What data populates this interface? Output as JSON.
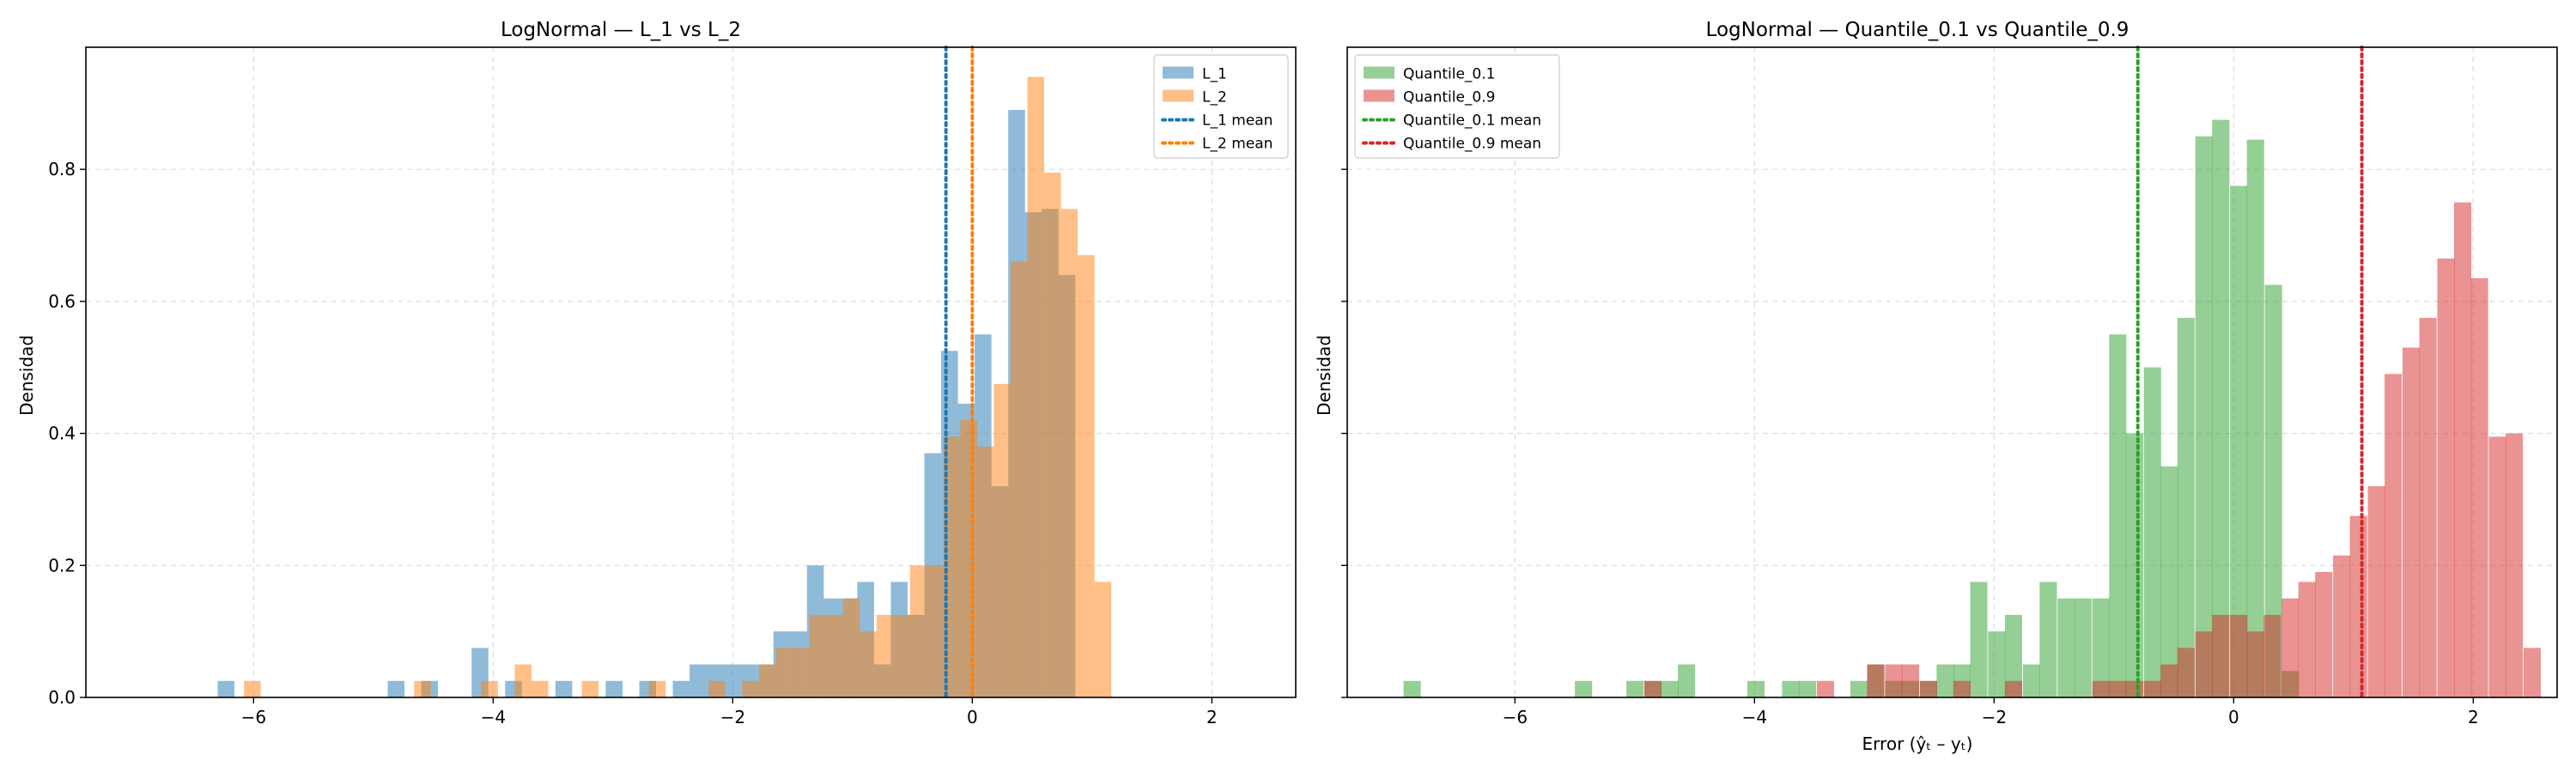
{
  "figure": {
    "ylabel": "Densidad"
  },
  "chart_data": [
    {
      "type": "histogram",
      "title": "LogNormal — L_1 vs L_2",
      "xlabel": "",
      "ylabel": "Densidad",
      "xlim": [
        -7.4,
        2.7
      ],
      "ylim": [
        0,
        0.985
      ],
      "xticks": [
        -6,
        -4,
        -2,
        0,
        2
      ],
      "xtick_labels": [
        "−6",
        "−4",
        "−2",
        "0",
        "2"
      ],
      "yticks": [
        0,
        0.2,
        0.4,
        0.6,
        0.8
      ],
      "ytick_labels": [
        "0.0",
        "0.2",
        "0.4",
        "0.6",
        "0.8"
      ],
      "grid": true,
      "legend_position": "top-right",
      "series": [
        {
          "name": "L_1",
          "color": "#1f77b4",
          "opacity": 0.5,
          "bin_width": 0.14,
          "bins": [
            [
              -6.3,
              0.025
            ],
            [
              -4.88,
              0.025
            ],
            [
              -4.6,
              0.025
            ],
            [
              -4.18,
              0.075
            ],
            [
              -3.9,
              0.025
            ],
            [
              -3.48,
              0.025
            ],
            [
              -3.06,
              0.025
            ],
            [
              -2.78,
              0.025
            ],
            [
              -2.5,
              0.025
            ],
            [
              -2.36,
              0.05
            ],
            [
              -2.22,
              0.05
            ],
            [
              -2.08,
              0.05
            ],
            [
              -1.94,
              0.05
            ],
            [
              -1.8,
              0.05
            ],
            [
              -1.66,
              0.1
            ],
            [
              -1.52,
              0.1
            ],
            [
              -1.38,
              0.2
            ],
            [
              -1.24,
              0.15
            ],
            [
              -1.1,
              0.15
            ],
            [
              -0.96,
              0.175
            ],
            [
              -0.82,
              0.05
            ],
            [
              -0.68,
              0.175
            ],
            [
              -0.54,
              0.125
            ],
            [
              -0.4,
              0.37
            ],
            [
              -0.26,
              0.525
            ],
            [
              -0.12,
              0.445
            ],
            [
              0.02,
              0.55
            ],
            [
              0.16,
              0.32
            ],
            [
              0.3,
              0.89
            ],
            [
              0.44,
              0.735
            ],
            [
              0.58,
              0.74
            ],
            [
              0.72,
              0.64
            ]
          ]
        },
        {
          "name": "L_2",
          "color": "#ff7f0e",
          "opacity": 0.5,
          "bin_width": 0.14,
          "bins": [
            [
              -6.08,
              0.025
            ],
            [
              -4.66,
              0.025
            ],
            [
              -4.1,
              0.025
            ],
            [
              -3.82,
              0.05
            ],
            [
              -3.68,
              0.025
            ],
            [
              -3.26,
              0.025
            ],
            [
              -2.7,
              0.025
            ],
            [
              -2.2,
              0.025
            ],
            [
              -1.92,
              0.025
            ],
            [
              -1.78,
              0.05
            ],
            [
              -1.64,
              0.075
            ],
            [
              -1.5,
              0.075
            ],
            [
              -1.36,
              0.125
            ],
            [
              -1.22,
              0.125
            ],
            [
              -1.08,
              0.15
            ],
            [
              -0.94,
              0.1
            ],
            [
              -0.8,
              0.125
            ],
            [
              -0.66,
              0.125
            ],
            [
              -0.52,
              0.2
            ],
            [
              -0.38,
              0.2
            ],
            [
              -0.24,
              0.395
            ],
            [
              -0.1,
              0.42
            ],
            [
              0.04,
              0.38
            ],
            [
              0.18,
              0.475
            ],
            [
              0.32,
              0.66
            ],
            [
              0.46,
              0.94
            ],
            [
              0.6,
              0.795
            ],
            [
              0.74,
              0.74
            ],
            [
              0.88,
              0.67
            ],
            [
              1.02,
              0.175
            ]
          ]
        }
      ],
      "mean_lines": [
        {
          "name": "L_1 mean",
          "x": -0.22,
          "color": "#1f77b4"
        },
        {
          "name": "L_2 mean",
          "x": 0.0,
          "color": "#ff7f0e"
        }
      ]
    },
    {
      "type": "histogram",
      "title": "LogNormal — Quantile_0.1 vs Quantile_0.9",
      "xlabel": "Error (ŷₜ – yₜ)",
      "ylabel": "Densidad",
      "xlim": [
        -7.4,
        2.7
      ],
      "ylim": [
        0,
        0.985
      ],
      "xticks": [
        -6,
        -4,
        -2,
        0,
        2
      ],
      "xtick_labels": [
        "−6",
        "−4",
        "−2",
        "0",
        "2"
      ],
      "yticks": [
        0,
        0.2,
        0.4,
        0.6,
        0.8
      ],
      "ytick_labels": [
        "",
        "",
        "",
        "",
        ""
      ],
      "grid": true,
      "legend_position": "top-left",
      "series": [
        {
          "name": "Quantile_0.1",
          "color": "#2ca02c",
          "opacity": 0.5,
          "bin_width": 0.144,
          "bins": [
            [
              -6.93,
              0.025
            ],
            [
              -5.5,
              0.025
            ],
            [
              -5.07,
              0.025
            ],
            [
              -4.92,
              0.025
            ],
            [
              -4.78,
              0.025
            ],
            [
              -4.64,
              0.05
            ],
            [
              -4.06,
              0.025
            ],
            [
              -3.77,
              0.025
            ],
            [
              -3.63,
              0.025
            ],
            [
              -3.2,
              0.025
            ],
            [
              -3.06,
              0.05
            ],
            [
              -2.91,
              0.025
            ],
            [
              -2.77,
              0.025
            ],
            [
              -2.62,
              0.025
            ],
            [
              -2.48,
              0.05
            ],
            [
              -2.34,
              0.05
            ],
            [
              -2.2,
              0.175
            ],
            [
              -2.05,
              0.1
            ],
            [
              -1.91,
              0.125
            ],
            [
              -1.76,
              0.05
            ],
            [
              -1.62,
              0.175
            ],
            [
              -1.47,
              0.15
            ],
            [
              -1.33,
              0.15
            ],
            [
              -1.18,
              0.15
            ],
            [
              -1.04,
              0.55
            ],
            [
              -0.9,
              0.4
            ],
            [
              -0.75,
              0.5
            ],
            [
              -0.61,
              0.35
            ],
            [
              -0.47,
              0.575
            ],
            [
              -0.32,
              0.85
            ],
            [
              -0.18,
              0.875
            ],
            [
              -0.03,
              0.775
            ],
            [
              0.11,
              0.845
            ],
            [
              0.26,
              0.625
            ],
            [
              0.4,
              0.04
            ],
            [
              0.55,
              0.0
            ]
          ]
        },
        {
          "name": "Quantile_0.9",
          "color": "#d62728",
          "opacity": 0.5,
          "bin_width": 0.144,
          "bins": [
            [
              -4.92,
              0.025
            ],
            [
              -3.48,
              0.025
            ],
            [
              -3.06,
              0.05
            ],
            [
              -2.91,
              0.05
            ],
            [
              -2.77,
              0.05
            ],
            [
              -2.62,
              0.025
            ],
            [
              -2.34,
              0.025
            ],
            [
              -1.91,
              0.025
            ],
            [
              -1.18,
              0.025
            ],
            [
              -1.04,
              0.025
            ],
            [
              -0.9,
              0.025
            ],
            [
              -0.75,
              0.025
            ],
            [
              -0.61,
              0.05
            ],
            [
              -0.47,
              0.075
            ],
            [
              -0.32,
              0.1
            ],
            [
              -0.18,
              0.125
            ],
            [
              -0.03,
              0.125
            ],
            [
              0.11,
              0.1
            ],
            [
              0.25,
              0.125
            ],
            [
              0.4,
              0.15
            ],
            [
              0.54,
              0.175
            ],
            [
              0.68,
              0.19
            ],
            [
              0.83,
              0.215
            ],
            [
              0.97,
              0.275
            ],
            [
              1.12,
              0.32
            ],
            [
              1.26,
              0.49
            ],
            [
              1.41,
              0.53
            ],
            [
              1.55,
              0.575
            ],
            [
              1.7,
              0.665
            ],
            [
              1.84,
              0.75
            ],
            [
              1.98,
              0.635
            ],
            [
              2.13,
              0.395
            ],
            [
              2.27,
              0.4
            ],
            [
              2.42,
              0.075
            ]
          ]
        }
      ],
      "mean_lines": [
        {
          "name": "Quantile_0.1 mean",
          "x": -0.8,
          "color": "#2ca02c"
        },
        {
          "name": "Quantile_0.9 mean",
          "x": 1.07,
          "color": "#d62728"
        }
      ]
    }
  ]
}
